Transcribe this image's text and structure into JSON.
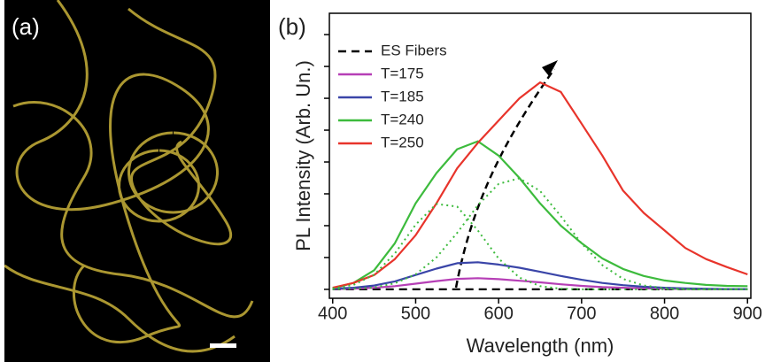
{
  "figure_a": {
    "label": "(a)"
  },
  "chart_data": {
    "type": "line",
    "panel_label": "(b)",
    "xlabel": "Wavelength (nm)",
    "ylabel": "PL Intensity (Arb. Un.)",
    "x": [
      400,
      425,
      450,
      475,
      500,
      525,
      550,
      575,
      600,
      625,
      650,
      675,
      700,
      725,
      750,
      775,
      800,
      825,
      850,
      875,
      900
    ],
    "xlim": [
      396,
      904
    ],
    "xticks": [
      400,
      500,
      600,
      700,
      800,
      900
    ],
    "ylim": [
      -0.28,
      8.67
    ],
    "yticks": [
      0,
      1,
      2,
      3,
      4,
      5,
      6,
      7,
      8
    ],
    "ytick_labels": false,
    "legend": "upper left",
    "series": [
      {
        "name": "ES Fibers",
        "color": "#000000",
        "style": "dashed",
        "values": [
          0,
          0,
          0,
          0,
          0,
          0,
          0,
          0,
          0,
          0,
          0,
          0,
          0,
          0,
          0,
          0,
          0,
          0,
          0,
          0,
          0
        ]
      },
      {
        "name": "T=175",
        "color": "#b63fb6",
        "style": "solid",
        "values": [
          0.01,
          0.02,
          0.05,
          0.1,
          0.18,
          0.26,
          0.33,
          0.35,
          0.32,
          0.27,
          0.22,
          0.16,
          0.11,
          0.07,
          0.05,
          0.03,
          0.02,
          0.01,
          0.01,
          0,
          0
        ]
      },
      {
        "name": "T=185",
        "color": "#3a45a8",
        "style": "solid",
        "values": [
          0.02,
          0.05,
          0.12,
          0.25,
          0.45,
          0.65,
          0.82,
          0.85,
          0.78,
          0.68,
          0.55,
          0.42,
          0.3,
          0.2,
          0.13,
          0.08,
          0.05,
          0.03,
          0.02,
          0.01,
          0.01
        ]
      },
      {
        "name": "T=240",
        "color": "#3dbb3d",
        "style": "solid",
        "values": [
          0.03,
          0.2,
          0.6,
          1.45,
          2.7,
          3.65,
          4.4,
          4.65,
          4.2,
          3.5,
          2.7,
          2.0,
          1.45,
          0.97,
          0.64,
          0.42,
          0.28,
          0.2,
          0.14,
          0.11,
          0.1
        ]
      },
      {
        "name": "T=250",
        "color": "#e8342b",
        "style": "solid",
        "values": [
          0.05,
          0.2,
          0.45,
          0.95,
          1.7,
          2.7,
          3.8,
          4.6,
          5.3,
          6.0,
          6.5,
          6.2,
          5.2,
          4.2,
          3.1,
          2.4,
          1.85,
          1.3,
          0.95,
          0.7,
          0.47
        ]
      },
      {
        "color": "#3dbb3d",
        "style": "dotted",
        "values": [
          0.03,
          0.14,
          0.46,
          1.13,
          2.03,
          2.68,
          2.6,
          1.85,
          0.97,
          0.37,
          0.1,
          0.02,
          0,
          0,
          0,
          0,
          0,
          0,
          0,
          0,
          0
        ]
      },
      {
        "color": "#3dbb3d",
        "style": "dotted",
        "values": [
          0,
          0.02,
          0.06,
          0.19,
          0.47,
          1.0,
          1.77,
          2.64,
          3.31,
          3.49,
          3.09,
          2.3,
          1.44,
          0.76,
          0.33,
          0.12,
          0.04,
          0.01,
          0,
          0,
          0
        ]
      }
    ]
  }
}
